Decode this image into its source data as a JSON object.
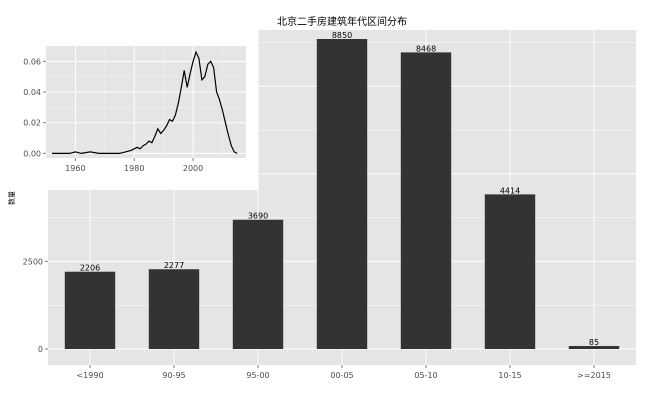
{
  "chart_data": [
    {
      "type": "bar",
      "title": "北京二手房建筑年代区间分布",
      "xlabel": "",
      "ylabel": "数量",
      "categories": [
        "<1990",
        "90-95",
        "95-00",
        "00-05",
        "05-10",
        "10-15",
        ">=2015"
      ],
      "values": [
        2206,
        2277,
        3690,
        8850,
        8468,
        4414,
        85
      ],
      "data_labels": [
        "2206",
        "2277",
        "3690",
        "8850",
        "8468",
        "4414",
        "85"
      ],
      "ylim": [
        0,
        9300
      ],
      "y_ticks": [
        0,
        2500
      ],
      "y_tick_labels": [
        "0",
        "2500"
      ],
      "grid": true,
      "bar_color": "#333333",
      "panel_color": "#e5e5e5"
    },
    {
      "type": "line",
      "title": "",
      "xlabel": "",
      "ylabel": "",
      "x": [
        1952,
        1955,
        1958,
        1960,
        1962,
        1965,
        1968,
        1970,
        1972,
        1975,
        1977,
        1979,
        1980,
        1981,
        1982,
        1983,
        1984,
        1985,
        1986,
        1987,
        1988,
        1989,
        1990,
        1991,
        1992,
        1993,
        1994,
        1995,
        1996,
        1997,
        1998,
        1999,
        2000,
        2001,
        2002,
        2003,
        2004,
        2005,
        2006,
        2007,
        2008,
        2009,
        2010,
        2011,
        2012,
        2013,
        2014,
        2015
      ],
      "y": [
        0.0,
        0.0,
        0.0,
        0.001,
        0.0,
        0.001,
        0.0,
        0.0,
        0.0,
        0.0,
        0.001,
        0.002,
        0.003,
        0.004,
        0.003,
        0.005,
        0.006,
        0.008,
        0.007,
        0.011,
        0.016,
        0.013,
        0.015,
        0.018,
        0.022,
        0.021,
        0.025,
        0.033,
        0.043,
        0.054,
        0.043,
        0.052,
        0.06,
        0.066,
        0.062,
        0.048,
        0.05,
        0.058,
        0.06,
        0.056,
        0.04,
        0.035,
        0.028,
        0.02,
        0.012,
        0.005,
        0.001,
        0.0
      ],
      "xlim": [
        1950,
        2018
      ],
      "ylim": [
        -0.003,
        0.07
      ],
      "x_ticks": [
        1960,
        1980,
        2000
      ],
      "x_tick_labels": [
        "1960",
        "1980",
        "2000"
      ],
      "y_ticks": [
        0.0,
        0.02,
        0.04,
        0.06
      ],
      "y_tick_labels": [
        "0.00",
        "0.02",
        "0.04",
        "0.06"
      ],
      "grid": true,
      "line_color": "#000000",
      "panel_color": "#e5e5e5"
    }
  ]
}
